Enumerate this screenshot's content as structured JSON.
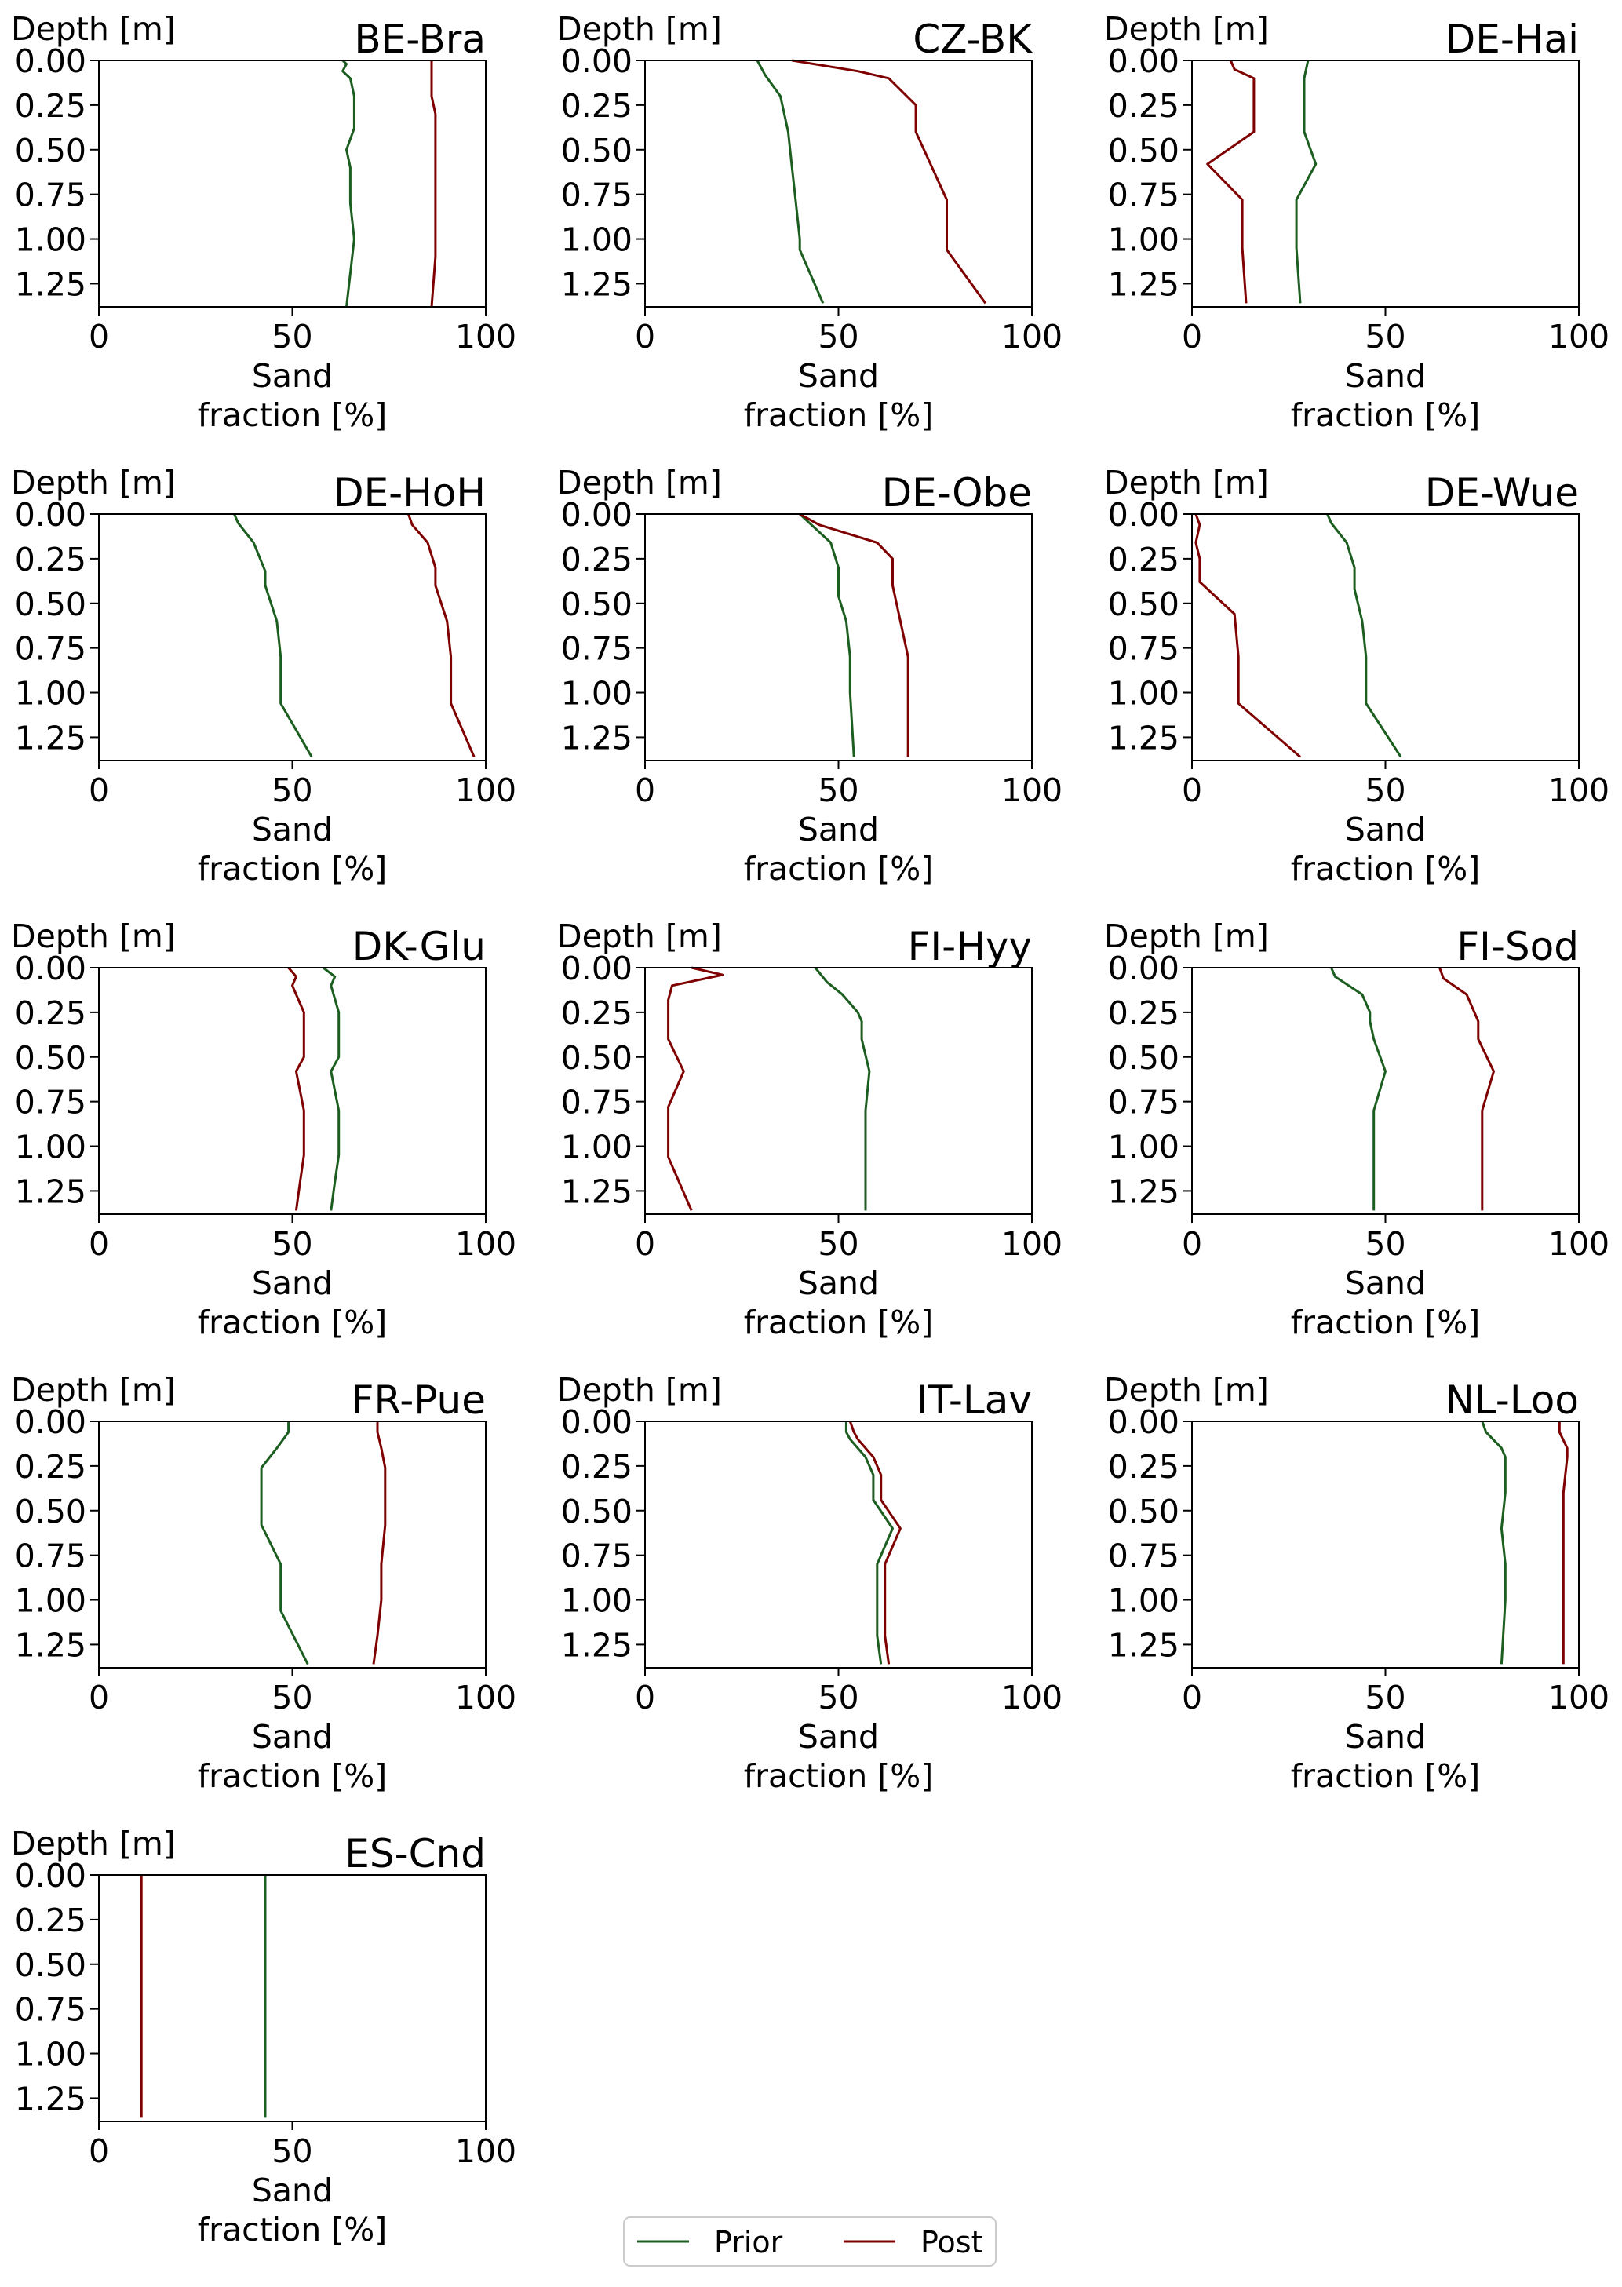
{
  "figure": {
    "legend": {
      "placement": "bottom-center",
      "entries": [
        "Prior",
        "Post"
      ]
    },
    "colors": {
      "prior": "#1b5e20",
      "post": "#7f0000",
      "axis": "#000000"
    }
  },
  "chart_data": [
    {
      "type": "line",
      "title": "BE-Bra",
      "ylabel": "Depth [m]",
      "xlabel": "Sand\nfraction [%]",
      "xlim": [
        0,
        100
      ],
      "ylim": [
        1.38,
        0.0
      ],
      "y_inverted": true,
      "xticks": [
        "0",
        "50",
        "100"
      ],
      "yticks": [
        "0.00",
        "0.25",
        "0.50",
        "0.75",
        "1.00",
        "1.25"
      ],
      "legend": "none",
      "series": [
        {
          "name": "Prior",
          "x": [
            63,
            64,
            63,
            65,
            66,
            66,
            64,
            65,
            65,
            66,
            64
          ],
          "y": [
            0.0,
            0.02,
            0.06,
            0.1,
            0.2,
            0.38,
            0.5,
            0.6,
            0.8,
            1.0,
            1.38
          ]
        },
        {
          "name": "Post",
          "x": [
            86,
            86,
            86,
            87,
            87,
            87,
            87,
            87,
            86
          ],
          "y": [
            0.0,
            0.1,
            0.2,
            0.3,
            0.5,
            0.7,
            0.9,
            1.1,
            1.38
          ]
        }
      ]
    },
    {
      "type": "line",
      "title": "CZ-BK",
      "ylabel": "Depth [m]",
      "xlabel": "Sand\nfraction [%]",
      "xlim": [
        0,
        100
      ],
      "ylim": [
        1.38,
        0.0
      ],
      "y_inverted": true,
      "xticks": [
        "0",
        "50",
        "100"
      ],
      "yticks": [
        "0.00",
        "0.25",
        "0.50",
        "0.75",
        "1.00",
        "1.25"
      ],
      "legend": "none",
      "series": [
        {
          "name": "Prior",
          "x": [
            29,
            31,
            35,
            37,
            38,
            39,
            40,
            40,
            46
          ],
          "y": [
            0.0,
            0.08,
            0.2,
            0.4,
            0.6,
            0.8,
            1.0,
            1.06,
            1.36
          ]
        },
        {
          "name": "Post",
          "x": [
            38,
            55,
            63,
            70,
            70,
            78,
            78,
            88
          ],
          "y": [
            0.0,
            0.06,
            0.1,
            0.25,
            0.4,
            0.78,
            1.06,
            1.36
          ]
        }
      ]
    },
    {
      "type": "line",
      "title": "DE-Hai",
      "ylabel": "Depth [m]",
      "xlabel": "Sand\nfraction [%]",
      "xlim": [
        0,
        100
      ],
      "ylim": [
        1.38,
        0.0
      ],
      "y_inverted": true,
      "xticks": [
        "0",
        "50",
        "100"
      ],
      "yticks": [
        "0.00",
        "0.25",
        "0.50",
        "0.75",
        "1.00",
        "1.25"
      ],
      "legend": "none",
      "series": [
        {
          "name": "Prior",
          "x": [
            30,
            29,
            29,
            32,
            27,
            27,
            28
          ],
          "y": [
            0.0,
            0.1,
            0.4,
            0.58,
            0.78,
            1.05,
            1.36
          ]
        },
        {
          "name": "Post",
          "x": [
            10,
            11,
            16,
            16,
            16,
            4,
            13,
            13,
            14
          ],
          "y": [
            0.0,
            0.05,
            0.1,
            0.16,
            0.4,
            0.58,
            0.78,
            1.05,
            1.36
          ]
        }
      ]
    },
    {
      "type": "line",
      "title": "DE-HoH",
      "ylabel": "Depth [m]",
      "xlabel": "Sand\nfraction [%]",
      "xlim": [
        0,
        100
      ],
      "ylim": [
        1.38,
        0.0
      ],
      "y_inverted": true,
      "xticks": [
        "0",
        "50",
        "100"
      ],
      "yticks": [
        "0.00",
        "0.25",
        "0.50",
        "0.75",
        "1.00",
        "1.25"
      ],
      "legend": "none",
      "series": [
        {
          "name": "Prior",
          "x": [
            35,
            36,
            40,
            43,
            43,
            46,
            47,
            47,
            55
          ],
          "y": [
            0.0,
            0.05,
            0.16,
            0.32,
            0.4,
            0.6,
            0.8,
            1.06,
            1.36
          ]
        },
        {
          "name": "Post",
          "x": [
            80,
            81,
            85,
            87,
            87,
            90,
            91,
            91,
            97
          ],
          "y": [
            0.0,
            0.06,
            0.16,
            0.3,
            0.4,
            0.6,
            0.8,
            1.06,
            1.36
          ]
        }
      ]
    },
    {
      "type": "line",
      "title": "DE-Obe",
      "ylabel": "Depth [m]",
      "xlabel": "Sand\nfraction [%]",
      "xlim": [
        0,
        100
      ],
      "ylim": [
        1.38,
        0.0
      ],
      "y_inverted": true,
      "xticks": [
        "0",
        "50",
        "100"
      ],
      "yticks": [
        "0.00",
        "0.25",
        "0.50",
        "0.75",
        "1.00",
        "1.25"
      ],
      "legend": "none",
      "series": [
        {
          "name": "Prior",
          "x": [
            40,
            43,
            48,
            50,
            50,
            52,
            53,
            53,
            54
          ],
          "y": [
            0.0,
            0.06,
            0.16,
            0.3,
            0.46,
            0.6,
            0.8,
            1.0,
            1.36
          ]
        },
        {
          "name": "Post",
          "x": [
            40,
            45,
            60,
            64,
            64,
            66,
            68,
            68,
            68
          ],
          "y": [
            0.0,
            0.06,
            0.16,
            0.25,
            0.4,
            0.6,
            0.8,
            1.0,
            1.36
          ]
        }
      ]
    },
    {
      "type": "line",
      "title": "DE-Wue",
      "ylabel": "Depth [m]",
      "xlabel": "Sand\nfraction [%]",
      "xlim": [
        0,
        100
      ],
      "ylim": [
        1.38,
        0.0
      ],
      "y_inverted": true,
      "xticks": [
        "0",
        "50",
        "100"
      ],
      "yticks": [
        "0.00",
        "0.25",
        "0.50",
        "0.75",
        "1.00",
        "1.25"
      ],
      "legend": "none",
      "series": [
        {
          "name": "Prior",
          "x": [
            35,
            36,
            40,
            42,
            42,
            44,
            45,
            45,
            54
          ],
          "y": [
            0.0,
            0.05,
            0.16,
            0.3,
            0.42,
            0.6,
            0.8,
            1.06,
            1.36
          ]
        },
        {
          "name": "Post",
          "x": [
            1,
            2,
            1,
            2,
            2,
            11,
            12,
            12,
            28
          ],
          "y": [
            0.0,
            0.06,
            0.16,
            0.25,
            0.38,
            0.56,
            0.8,
            1.06,
            1.36
          ]
        }
      ]
    },
    {
      "type": "line",
      "title": "DK-Glu",
      "ylabel": "Depth [m]",
      "xlabel": "Sand\nfraction [%]",
      "xlim": [
        0,
        100
      ],
      "ylim": [
        1.38,
        0.0
      ],
      "y_inverted": true,
      "xticks": [
        "0",
        "50",
        "100"
      ],
      "yticks": [
        "0.00",
        "0.25",
        "0.50",
        "0.75",
        "1.00",
        "1.25"
      ],
      "legend": "none",
      "series": [
        {
          "name": "Prior",
          "x": [
            58,
            61,
            60,
            62,
            62,
            60,
            62,
            62,
            61,
            60
          ],
          "y": [
            0.0,
            0.05,
            0.1,
            0.25,
            0.5,
            0.58,
            0.8,
            1.05,
            1.2,
            1.36
          ]
        },
        {
          "name": "Post",
          "x": [
            49,
            51,
            50,
            53,
            53,
            51,
            53,
            53,
            52,
            51
          ],
          "y": [
            0.0,
            0.05,
            0.1,
            0.25,
            0.5,
            0.58,
            0.8,
            1.05,
            1.2,
            1.36
          ]
        }
      ]
    },
    {
      "type": "line",
      "title": "FI-Hyy",
      "ylabel": "Depth [m]",
      "xlabel": "Sand\nfraction [%]",
      "xlim": [
        0,
        100
      ],
      "ylim": [
        1.38,
        0.0
      ],
      "y_inverted": true,
      "xticks": [
        "0",
        "50",
        "100"
      ],
      "yticks": [
        "0.00",
        "0.25",
        "0.50",
        "0.75",
        "1.00",
        "1.25"
      ],
      "legend": "none",
      "series": [
        {
          "name": "Prior",
          "x": [
            44,
            47,
            51,
            55,
            56,
            56,
            58,
            57,
            57,
            57
          ],
          "y": [
            0.0,
            0.08,
            0.15,
            0.25,
            0.3,
            0.4,
            0.58,
            0.8,
            1.0,
            1.36
          ]
        },
        {
          "name": "Post",
          "x": [
            12,
            20,
            7,
            6,
            6,
            10,
            6,
            6,
            6,
            12
          ],
          "y": [
            0.0,
            0.04,
            0.1,
            0.18,
            0.4,
            0.58,
            0.78,
            1.0,
            1.06,
            1.36
          ]
        }
      ]
    },
    {
      "type": "line",
      "title": "FI-Sod",
      "ylabel": "Depth [m]",
      "xlabel": "Sand\nfraction [%]",
      "xlim": [
        0,
        100
      ],
      "ylim": [
        1.38,
        0.0
      ],
      "y_inverted": true,
      "xticks": [
        "0",
        "50",
        "100"
      ],
      "yticks": [
        "0.00",
        "0.25",
        "0.50",
        "0.75",
        "1.00",
        "1.25"
      ],
      "legend": "none",
      "series": [
        {
          "name": "Prior",
          "x": [
            36,
            37,
            44,
            46,
            46,
            47,
            50,
            47,
            47,
            47
          ],
          "y": [
            0.0,
            0.05,
            0.15,
            0.25,
            0.3,
            0.4,
            0.58,
            0.8,
            1.0,
            1.36
          ]
        },
        {
          "name": "Post",
          "x": [
            64,
            65,
            71,
            73,
            74,
            74,
            78,
            75,
            75,
            75
          ],
          "y": [
            0.0,
            0.06,
            0.15,
            0.25,
            0.3,
            0.4,
            0.58,
            0.8,
            1.0,
            1.36
          ]
        }
      ]
    },
    {
      "type": "line",
      "title": "FR-Pue",
      "ylabel": "Depth [m]",
      "xlabel": "Sand\nfraction [%]",
      "xlim": [
        0,
        100
      ],
      "ylim": [
        1.38,
        0.0
      ],
      "y_inverted": true,
      "xticks": [
        "0",
        "50",
        "100"
      ],
      "yticks": [
        "0.00",
        "0.25",
        "0.50",
        "0.75",
        "1.00",
        "1.25"
      ],
      "legend": "none",
      "series": [
        {
          "name": "Prior",
          "x": [
            49,
            49,
            46,
            42,
            42,
            42,
            47,
            47,
            47,
            54
          ],
          "y": [
            0.0,
            0.06,
            0.15,
            0.26,
            0.4,
            0.58,
            0.8,
            1.0,
            1.06,
            1.36
          ]
        },
        {
          "name": "Post",
          "x": [
            72,
            72,
            73,
            74,
            74,
            74,
            73,
            73,
            72,
            71
          ],
          "y": [
            0.0,
            0.06,
            0.15,
            0.26,
            0.4,
            0.58,
            0.8,
            1.0,
            1.2,
            1.36
          ]
        }
      ]
    },
    {
      "type": "line",
      "title": "IT-Lav",
      "ylabel": "Depth [m]",
      "xlabel": "Sand\nfraction [%]",
      "xlim": [
        0,
        100
      ],
      "ylim": [
        1.38,
        0.0
      ],
      "y_inverted": true,
      "xticks": [
        "0",
        "50",
        "100"
      ],
      "yticks": [
        "0.00",
        "0.25",
        "0.50",
        "0.75",
        "1.00",
        "1.25"
      ],
      "legend": "none",
      "series": [
        {
          "name": "Prior",
          "x": [
            52,
            52,
            53,
            57,
            59,
            59,
            64,
            60,
            60,
            60,
            61
          ],
          "y": [
            0.0,
            0.06,
            0.1,
            0.2,
            0.3,
            0.44,
            0.6,
            0.8,
            1.0,
            1.2,
            1.36
          ]
        },
        {
          "name": "Post",
          "x": [
            53,
            54,
            55,
            59,
            61,
            61,
            66,
            62,
            62,
            62,
            63
          ],
          "y": [
            0.0,
            0.06,
            0.1,
            0.2,
            0.3,
            0.44,
            0.6,
            0.8,
            1.0,
            1.2,
            1.36
          ]
        }
      ]
    },
    {
      "type": "line",
      "title": "NL-Loo",
      "ylabel": "Depth [m]",
      "xlabel": "Sand\nfraction [%]",
      "xlim": [
        0,
        100
      ],
      "ylim": [
        1.38,
        0.0
      ],
      "y_inverted": true,
      "xticks": [
        "0",
        "50",
        "100"
      ],
      "yticks": [
        "0.00",
        "0.25",
        "0.50",
        "0.75",
        "1.00",
        "1.25"
      ],
      "legend": "none",
      "series": [
        {
          "name": "Prior",
          "x": [
            75,
            76,
            80,
            81,
            81,
            80,
            81,
            81,
            80
          ],
          "y": [
            0.0,
            0.06,
            0.15,
            0.2,
            0.4,
            0.6,
            0.8,
            1.0,
            1.36
          ]
        },
        {
          "name": "Post",
          "x": [
            95,
            95,
            97,
            97,
            96,
            96,
            96,
            96,
            96
          ],
          "y": [
            0.0,
            0.06,
            0.15,
            0.2,
            0.4,
            0.6,
            0.8,
            1.0,
            1.36
          ]
        }
      ]
    },
    {
      "type": "line",
      "title": "ES-Cnd",
      "ylabel": "Depth [m]",
      "xlabel": "Sand\nfraction [%]",
      "xlim": [
        0,
        100
      ],
      "ylim": [
        1.38,
        0.0
      ],
      "y_inverted": true,
      "xticks": [
        "0",
        "50",
        "100"
      ],
      "yticks": [
        "0.00",
        "0.25",
        "0.50",
        "0.75",
        "1.00",
        "1.25"
      ],
      "legend": "none",
      "series": [
        {
          "name": "Prior",
          "x": [
            43,
            43
          ],
          "y": [
            0.0,
            1.36
          ]
        },
        {
          "name": "Post",
          "x": [
            11,
            11
          ],
          "y": [
            0.0,
            1.36
          ]
        }
      ]
    }
  ]
}
